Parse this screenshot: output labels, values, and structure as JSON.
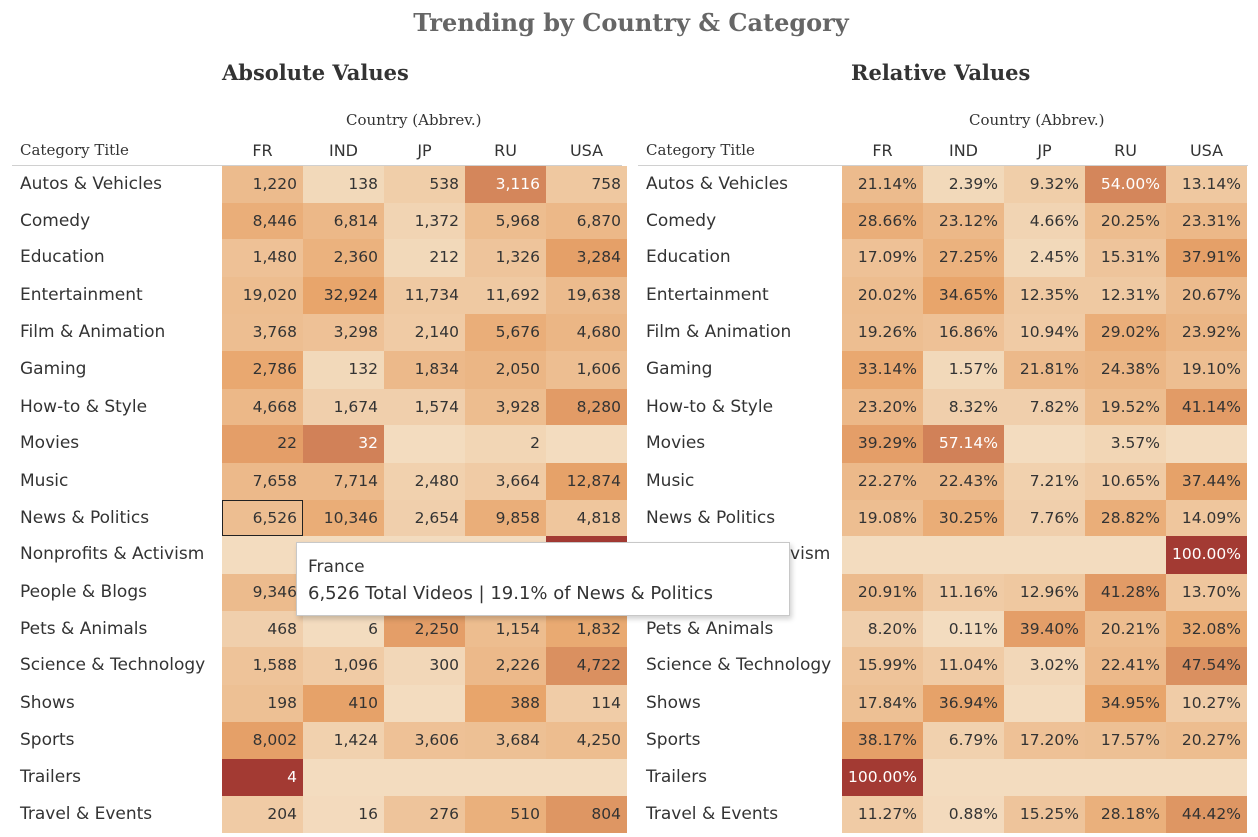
{
  "title": "Trending by Country & Category",
  "panels": [
    {
      "id": "absolute",
      "title": "Absolute Values",
      "column_group_label": "Country (Abbrev.)",
      "row_header": "Category Title"
    },
    {
      "id": "relative",
      "title": "Relative Values",
      "column_group_label": "Country (Abbrev.)",
      "row_header": "Category Title"
    }
  ],
  "tooltip": {
    "line1": "France",
    "line2": "6,526 Total Videos | 19.1% of News & Politics"
  },
  "colors": {
    "lightest": "#f3dcbf",
    "mid": "#e8a56b",
    "darkest": "#a33a33"
  },
  "chart_data": [
    {
      "type": "heatmap",
      "title": "Absolute Values",
      "xlabel": "Country (Abbrev.)",
      "ylabel": "Category Title",
      "columns": [
        "FR",
        "IND",
        "JP",
        "RU",
        "USA"
      ],
      "rows": [
        "Autos & Vehicles",
        "Comedy",
        "Education",
        "Entertainment",
        "Film & Animation",
        "Gaming",
        "How-to & Style",
        "Movies",
        "Music",
        "News & Politics",
        "Nonprofits & Activism",
        "People & Blogs",
        "Pets & Animals",
        "Science & Technology",
        "Shows",
        "Sports",
        "Trailers",
        "Travel & Events"
      ],
      "values": [
        [
          1220,
          138,
          538,
          3116,
          758
        ],
        [
          8446,
          6814,
          1372,
          5968,
          6870
        ],
        [
          1480,
          2360,
          212,
          1326,
          3284
        ],
        [
          19020,
          32924,
          11734,
          11692,
          19638
        ],
        [
          3768,
          3298,
          2140,
          5676,
          4680
        ],
        [
          2786,
          132,
          1834,
          2050,
          1606
        ],
        [
          4668,
          1674,
          1574,
          3928,
          8280
        ],
        [
          22,
          32,
          null,
          2,
          null
        ],
        [
          7658,
          7714,
          2480,
          3664,
          12874
        ],
        [
          6526,
          10346,
          2654,
          9858,
          4818
        ],
        [
          null,
          null,
          null,
          null,
          null
        ],
        [
          9346,
          null,
          null,
          null,
          null
        ],
        [
          468,
          6,
          2250,
          1154,
          1832
        ],
        [
          1588,
          1096,
          300,
          2226,
          4722
        ],
        [
          198,
          410,
          null,
          388,
          114
        ],
        [
          8002,
          1424,
          3606,
          3684,
          4250
        ],
        [
          4,
          null,
          null,
          null,
          null
        ],
        [
          204,
          16,
          276,
          510,
          804
        ]
      ],
      "labels": [
        [
          "1,220",
          "138",
          "538",
          "3,116",
          "758"
        ],
        [
          "8,446",
          "6,814",
          "1,372",
          "5,968",
          "6,870"
        ],
        [
          "1,480",
          "2,360",
          "212",
          "1,326",
          "3,284"
        ],
        [
          "19,020",
          "32,924",
          "11,734",
          "11,692",
          "19,638"
        ],
        [
          "3,768",
          "3,298",
          "2,140",
          "5,676",
          "4,680"
        ],
        [
          "2,786",
          "132",
          "1,834",
          "2,050",
          "1,606"
        ],
        [
          "4,668",
          "1,674",
          "1,574",
          "3,928",
          "8,280"
        ],
        [
          "22",
          "32",
          "",
          "2",
          ""
        ],
        [
          "7,658",
          "7,714",
          "2,480",
          "3,664",
          "12,874"
        ],
        [
          "6,526",
          "10,346",
          "2,654",
          "9,858",
          "4,818"
        ],
        [
          "",
          "",
          "",
          "",
          ""
        ],
        [
          "9,346",
          "",
          "",
          "",
          ""
        ],
        [
          "468",
          "6",
          "2,250",
          "1,154",
          "1,832"
        ],
        [
          "1,588",
          "1,096",
          "300",
          "2,226",
          "4,722"
        ],
        [
          "198",
          "410",
          "",
          "388",
          "114"
        ],
        [
          "8,002",
          "1,424",
          "3,606",
          "3,684",
          "4,250"
        ],
        [
          "4",
          "",
          "",
          "",
          ""
        ],
        [
          "204",
          "16",
          "276",
          "510",
          "804"
        ]
      ],
      "shade": [
        [
          0.21,
          0.02,
          0.09,
          0.54,
          0.13
        ],
        [
          0.29,
          0.23,
          0.05,
          0.2,
          0.23
        ],
        [
          0.17,
          0.27,
          0.02,
          0.15,
          0.38
        ],
        [
          0.2,
          0.35,
          0.12,
          0.12,
          0.21
        ],
        [
          0.19,
          0.17,
          0.11,
          0.29,
          0.24
        ],
        [
          0.33,
          0.02,
          0.22,
          0.24,
          0.19
        ],
        [
          0.23,
          0.08,
          0.08,
          0.2,
          0.41
        ],
        [
          0.39,
          0.57,
          null,
          0.04,
          null
        ],
        [
          0.22,
          0.22,
          0.07,
          0.11,
          0.37
        ],
        [
          0.19,
          0.3,
          0.08,
          0.29,
          0.14
        ],
        [
          0,
          0,
          0,
          0,
          1.0
        ],
        [
          0.21,
          0.11,
          0.13,
          0.41,
          0.14
        ],
        [
          0.08,
          0.0,
          0.39,
          0.2,
          0.32
        ],
        [
          0.16,
          0.11,
          0.03,
          0.22,
          0.48
        ],
        [
          0.18,
          0.37,
          null,
          0.35,
          0.1
        ],
        [
          0.38,
          0.07,
          0.17,
          0.18,
          0.2
        ],
        [
          1.0,
          0,
          0,
          0,
          0
        ],
        [
          0.11,
          0.01,
          0.15,
          0.28,
          0.44
        ]
      ],
      "selected": [
        9,
        0
      ]
    },
    {
      "type": "heatmap",
      "title": "Relative Values",
      "xlabel": "Country (Abbrev.)",
      "ylabel": "Category Title",
      "columns": [
        "FR",
        "IND",
        "JP",
        "RU",
        "USA"
      ],
      "rows": [
        "Autos & Vehicles",
        "Comedy",
        "Education",
        "Entertainment",
        "Film & Animation",
        "Gaming",
        "How-to & Style",
        "Movies",
        "Music",
        "News & Politics",
        "Nonprofits & Activism",
        "People & Blogs",
        "Pets & Animals",
        "Science & Technology",
        "Shows",
        "Sports",
        "Trailers",
        "Travel & Events"
      ],
      "values": [
        [
          21.14,
          2.39,
          9.32,
          54.0,
          13.14
        ],
        [
          28.66,
          23.12,
          4.66,
          20.25,
          23.31
        ],
        [
          17.09,
          27.25,
          2.45,
          15.31,
          37.91
        ],
        [
          20.02,
          34.65,
          12.35,
          12.31,
          20.67
        ],
        [
          19.26,
          16.86,
          10.94,
          29.02,
          23.92
        ],
        [
          33.14,
          1.57,
          21.81,
          24.38,
          19.1
        ],
        [
          23.2,
          8.32,
          7.82,
          19.52,
          41.14
        ],
        [
          39.29,
          57.14,
          null,
          3.57,
          null
        ],
        [
          22.27,
          22.43,
          7.21,
          10.65,
          37.44
        ],
        [
          19.08,
          30.25,
          7.76,
          28.82,
          14.09
        ],
        [
          null,
          null,
          null,
          null,
          100.0
        ],
        [
          20.91,
          11.16,
          12.96,
          41.28,
          13.7
        ],
        [
          8.2,
          0.11,
          39.4,
          20.21,
          32.08
        ],
        [
          15.99,
          11.04,
          3.02,
          22.41,
          47.54
        ],
        [
          17.84,
          36.94,
          null,
          34.95,
          10.27
        ],
        [
          38.17,
          6.79,
          17.2,
          17.57,
          20.27
        ],
        [
          100.0,
          null,
          null,
          null,
          null
        ],
        [
          11.27,
          0.88,
          15.25,
          28.18,
          44.42
        ]
      ],
      "labels": [
        [
          "21.14%",
          "2.39%",
          "9.32%",
          "54.00%",
          "13.14%"
        ],
        [
          "28.66%",
          "23.12%",
          "4.66%",
          "20.25%",
          "23.31%"
        ],
        [
          "17.09%",
          "27.25%",
          "2.45%",
          "15.31%",
          "37.91%"
        ],
        [
          "20.02%",
          "34.65%",
          "12.35%",
          "12.31%",
          "20.67%"
        ],
        [
          "19.26%",
          "16.86%",
          "10.94%",
          "29.02%",
          "23.92%"
        ],
        [
          "33.14%",
          "1.57%",
          "21.81%",
          "24.38%",
          "19.10%"
        ],
        [
          "23.20%",
          "8.32%",
          "7.82%",
          "19.52%",
          "41.14%"
        ],
        [
          "39.29%",
          "57.14%",
          "",
          "3.57%",
          ""
        ],
        [
          "22.27%",
          "22.43%",
          "7.21%",
          "10.65%",
          "37.44%"
        ],
        [
          "19.08%",
          "30.25%",
          "7.76%",
          "28.82%",
          "14.09%"
        ],
        [
          "",
          "",
          "",
          "",
          "100.00%"
        ],
        [
          "20.91%",
          "11.16%",
          "12.96%",
          "41.28%",
          "13.70%"
        ],
        [
          "8.20%",
          "0.11%",
          "39.40%",
          "20.21%",
          "32.08%"
        ],
        [
          "15.99%",
          "11.04%",
          "3.02%",
          "22.41%",
          "47.54%"
        ],
        [
          "17.84%",
          "36.94%",
          "",
          "34.95%",
          "10.27%"
        ],
        [
          "38.17%",
          "6.79%",
          "17.20%",
          "17.57%",
          "20.27%"
        ],
        [
          "100.00%",
          "",
          "",
          "",
          ""
        ],
        [
          "11.27%",
          "0.88%",
          "15.25%",
          "28.18%",
          "44.42%"
        ]
      ],
      "shade": [
        [
          0.21,
          0.02,
          0.09,
          0.54,
          0.13
        ],
        [
          0.29,
          0.23,
          0.05,
          0.2,
          0.23
        ],
        [
          0.17,
          0.27,
          0.02,
          0.15,
          0.38
        ],
        [
          0.2,
          0.35,
          0.12,
          0.12,
          0.21
        ],
        [
          0.19,
          0.17,
          0.11,
          0.29,
          0.24
        ],
        [
          0.33,
          0.02,
          0.22,
          0.24,
          0.19
        ],
        [
          0.23,
          0.08,
          0.08,
          0.2,
          0.41
        ],
        [
          0.39,
          0.57,
          null,
          0.04,
          null
        ],
        [
          0.22,
          0.22,
          0.07,
          0.11,
          0.37
        ],
        [
          0.19,
          0.3,
          0.08,
          0.29,
          0.14
        ],
        [
          0,
          0,
          0,
          0,
          1.0
        ],
        [
          0.21,
          0.11,
          0.13,
          0.41,
          0.14
        ],
        [
          0.08,
          0.0,
          0.39,
          0.2,
          0.32
        ],
        [
          0.16,
          0.11,
          0.03,
          0.22,
          0.48
        ],
        [
          0.18,
          0.37,
          null,
          0.35,
          0.1
        ],
        [
          0.38,
          0.07,
          0.17,
          0.18,
          0.2
        ],
        [
          1.0,
          0,
          0,
          0,
          0
        ],
        [
          0.11,
          0.01,
          0.15,
          0.28,
          0.44
        ]
      ],
      "selected": null
    }
  ]
}
